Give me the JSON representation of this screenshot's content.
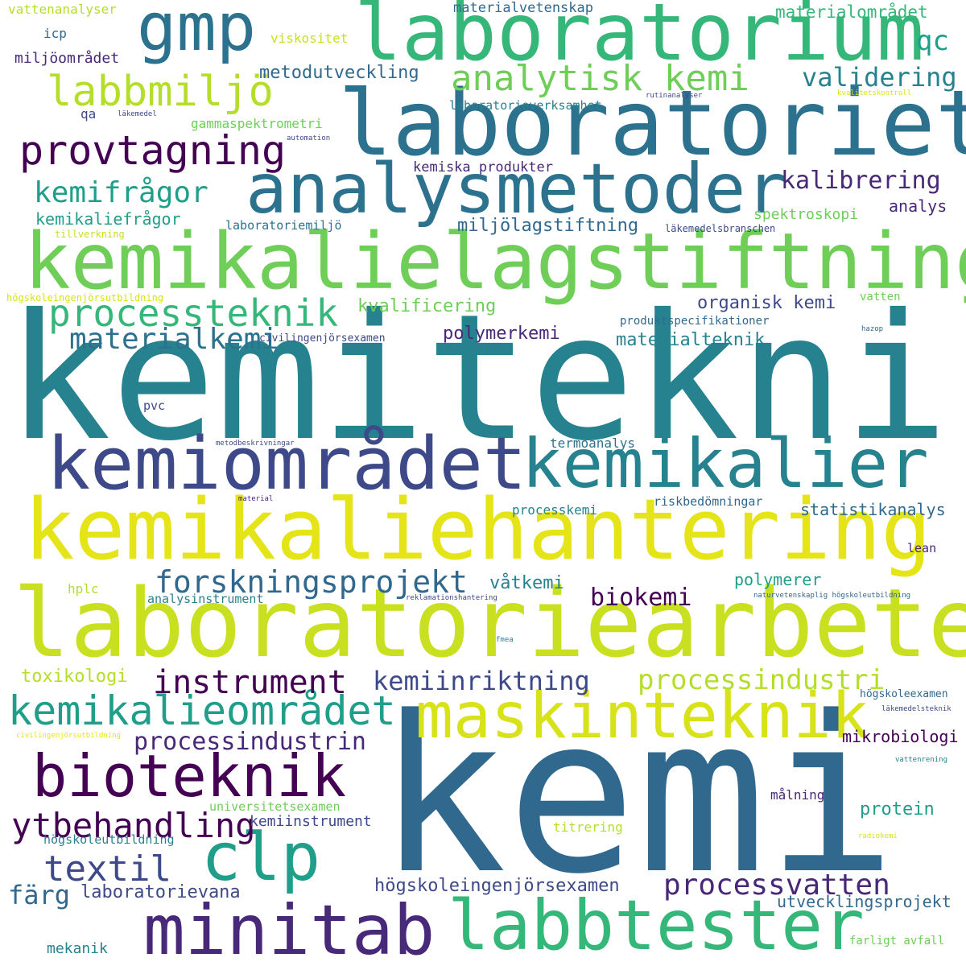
{
  "words": [
    {
      "text": "kemiteknik",
      "color": "#26828e"
    },
    {
      "text": "kemi",
      "color": "#31688e"
    },
    {
      "text": "laboratoriearbete",
      "color": "#c8e020"
    },
    {
      "text": "kemikaliehantering",
      "color": "#e5e419"
    },
    {
      "text": "kemikalielagstiftning",
      "color": "#6ece58"
    },
    {
      "text": "laboratoriet",
      "color": "#2c728e"
    },
    {
      "text": "laboratorium",
      "color": "#35b779"
    },
    {
      "text": "analysmetoder",
      "color": "#2c728e"
    },
    {
      "text": "kemiområdet",
      "color": "#3e4989"
    },
    {
      "text": "kemikalier",
      "color": "#26828e"
    },
    {
      "text": "maskinteknik",
      "color": "#d8e219"
    },
    {
      "text": "labbtester",
      "color": "#35b779"
    },
    {
      "text": "minitab",
      "color": "#482878"
    },
    {
      "text": "bioteknik",
      "color": "#440154"
    },
    {
      "text": "clp",
      "color": "#1f9e89"
    },
    {
      "text": "gmp",
      "color": "#2c728e"
    },
    {
      "text": "kemikalieområdet",
      "color": "#1f9e89"
    },
    {
      "text": "labbmiljö",
      "color": "#b5de2b"
    },
    {
      "text": "provtagning",
      "color": "#440154"
    },
    {
      "text": "processteknik",
      "color": "#35b779"
    },
    {
      "text": "analytisk kemi",
      "color": "#6ece58"
    },
    {
      "text": "forskningsprojekt",
      "color": "#31688e"
    },
    {
      "text": "ytbehandling",
      "color": "#440154"
    },
    {
      "text": "instrument",
      "color": "#440154"
    },
    {
      "text": "textil",
      "color": "#3e4989"
    },
    {
      "text": "processvatten",
      "color": "#482878"
    },
    {
      "text": "kemifrågor",
      "color": "#1f9e89"
    },
    {
      "text": "materialkemi",
      "color": "#2c728e"
    },
    {
      "text": "processindustri",
      "color": "#b5de2b"
    },
    {
      "text": "processindustrin",
      "color": "#482878"
    },
    {
      "text": "kemiinriktning",
      "color": "#3e4989"
    },
    {
      "text": "biokemi",
      "color": "#440154"
    },
    {
      "text": "färg",
      "color": "#31688e"
    },
    {
      "text": "qc",
      "color": "#1f9e89"
    },
    {
      "text": "validering",
      "color": "#26828e"
    },
    {
      "text": "kalibrering",
      "color": "#482878"
    },
    {
      "text": "laboratorievana",
      "color": "#3e4989"
    },
    {
      "text": "högskoleingenjörsexamen",
      "color": "#3e4989"
    },
    {
      "text": "utvecklingsprojekt",
      "color": "#31688e"
    },
    {
      "text": "toxikologi",
      "color": "#b5de2b"
    },
    {
      "text": "mikrobiologi",
      "color": "#440154"
    },
    {
      "text": "protein",
      "color": "#1f9e89"
    },
    {
      "text": "metodutveckling",
      "color": "#31688e"
    },
    {
      "text": "miljölagstiftning",
      "color": "#31688e"
    },
    {
      "text": "kvalificering",
      "color": "#6ece58"
    },
    {
      "text": "organisk kemi",
      "color": "#3e4989"
    },
    {
      "text": "polymerkemi",
      "color": "#482878"
    },
    {
      "text": "materialteknik",
      "color": "#26828e"
    },
    {
      "text": "kemikaliefrågor",
      "color": "#1f9e89"
    },
    {
      "text": "materialområdet",
      "color": "#35b779"
    },
    {
      "text": "statistikanalys",
      "color": "#31688e"
    },
    {
      "text": "våtkemi",
      "color": "#26828e"
    },
    {
      "text": "polymerer",
      "color": "#1f9e89"
    },
    {
      "text": "mekanik",
      "color": "#26828e"
    },
    {
      "text": "kemiinstrument",
      "color": "#3e4989"
    },
    {
      "text": "miljöområdet",
      "color": "#482878"
    },
    {
      "text": "analys",
      "color": "#482878"
    },
    {
      "text": "spektroskopi",
      "color": "#6ece58"
    },
    {
      "text": "kemiska produkter",
      "color": "#482878"
    },
    {
      "text": "gammaspektrometri",
      "color": "#6ece58"
    },
    {
      "text": "materialvetenskap",
      "color": "#31688e"
    },
    {
      "text": "viskositet",
      "color": "#c8e020"
    },
    {
      "text": "vattenanalyser",
      "color": "#b5de2b"
    },
    {
      "text": "icp",
      "color": "#31688e"
    },
    {
      "text": "qa",
      "color": "#3e4989"
    },
    {
      "text": "laboratorieverksamhet",
      "color": "#26828e"
    },
    {
      "text": "laboratoriemiljö",
      "color": "#2c728e"
    },
    {
      "text": "processkemi",
      "color": "#26828e"
    },
    {
      "text": "riskbedömningar",
      "color": "#31688e"
    },
    {
      "text": "termoanalys",
      "color": "#2c728e"
    },
    {
      "text": "hplc",
      "color": "#b5de2b"
    },
    {
      "text": "analysinstrument",
      "color": "#26828e"
    },
    {
      "text": "universitetsexamen",
      "color": "#6ece58"
    },
    {
      "text": "högskoleutbildning",
      "color": "#26828e"
    },
    {
      "text": "titrering",
      "color": "#b5de2b"
    },
    {
      "text": "målning",
      "color": "#482878"
    },
    {
      "text": "farligt avfall",
      "color": "#6ece58"
    },
    {
      "text": "lean",
      "color": "#482878"
    },
    {
      "text": "pvc",
      "color": "#3e4989"
    },
    {
      "text": "vatten",
      "color": "#6ece58"
    },
    {
      "text": "produktspecifikationer",
      "color": "#31688e"
    },
    {
      "text": "civilingenjörsexamen",
      "color": "#3e4989"
    },
    {
      "text": "läkemedelsbranschen",
      "color": "#3e4989"
    },
    {
      "text": "tillverkning",
      "color": "#c8e020"
    },
    {
      "text": "högskoleingenjörsutbildning",
      "color": "#d8e219"
    },
    {
      "text": "högskoleexamen",
      "color": "#31688e"
    },
    {
      "text": "läkemedelsteknik",
      "color": "#3e4989"
    },
    {
      "text": "vattenrening",
      "color": "#26828e"
    },
    {
      "text": "civilingenjörsutbildning",
      "color": "#e5e419"
    },
    {
      "text": "automation",
      "color": "#3e4989"
    },
    {
      "text": "läkemedel",
      "color": "#3e4989"
    },
    {
      "text": "rutinanalyser",
      "color": "#3e4989"
    },
    {
      "text": "kvalitetskontroll",
      "color": "#d8e219"
    },
    {
      "text": "hazop",
      "color": "#31688e"
    },
    {
      "text": "metodbeskrivningar",
      "color": "#3e4989"
    },
    {
      "text": "material",
      "color": "#482878"
    },
    {
      "text": "reklamationshantering",
      "color": "#3e4989"
    },
    {
      "text": "naturvetenskaplig högskoleutbildning",
      "color": "#31688e"
    },
    {
      "text": "fmea",
      "color": "#26828e"
    },
    {
      "text": "radiokemi",
      "color": "#d8e219"
    }
  ]
}
